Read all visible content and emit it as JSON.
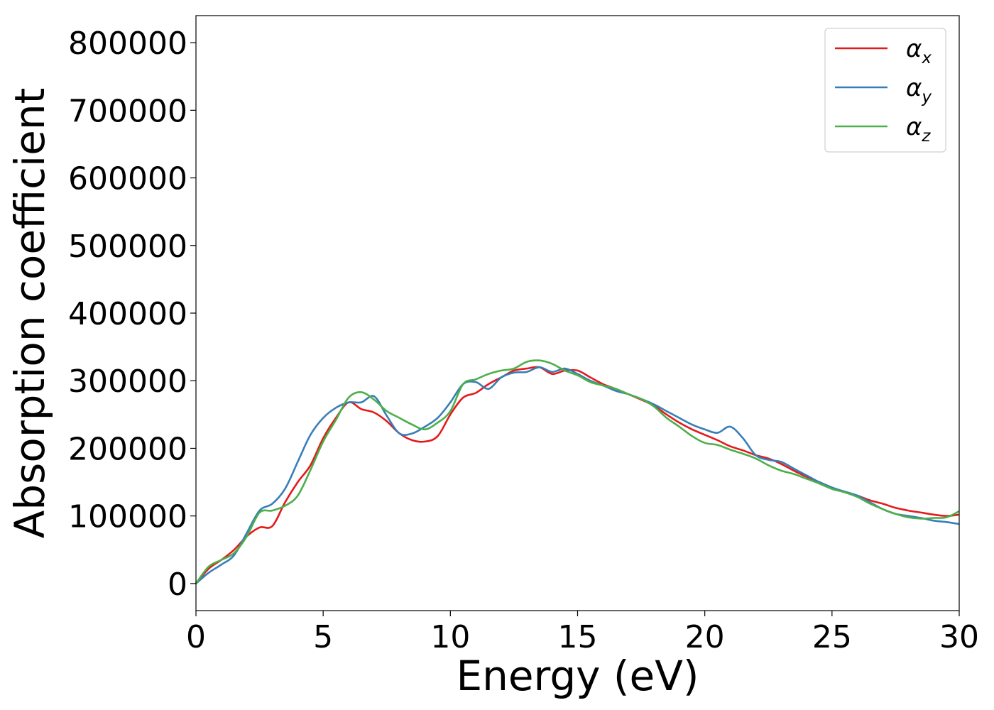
{
  "chart_data": {
    "type": "line",
    "title": "",
    "xlabel": "Energy (eV)",
    "ylabel": "Absorption coefficient",
    "xlim": [
      0,
      30
    ],
    "ylim": [
      -40000,
      840000
    ],
    "xticks": [
      0,
      5,
      10,
      15,
      20,
      25,
      30
    ],
    "xtick_labels": [
      "0",
      "5",
      "10",
      "15",
      "20",
      "25",
      "30"
    ],
    "yticks": [
      0,
      100000,
      200000,
      300000,
      400000,
      500000,
      600000,
      700000,
      800000
    ],
    "ytick_labels": [
      "0",
      "100000",
      "200000",
      "300000",
      "400000",
      "500000",
      "600000",
      "700000",
      "800000"
    ],
    "grid": false,
    "legend_position": "top-right",
    "series": [
      {
        "name": "α",
        "subscript": "x",
        "color": "#e41a1c",
        "x": [
          0,
          0.5,
          1,
          1.5,
          2,
          2.5,
          3,
          3.5,
          4,
          4.5,
          5,
          5.5,
          6,
          6.5,
          7,
          7.5,
          8,
          8.5,
          9,
          9.5,
          10,
          10.5,
          11,
          11.5,
          12,
          12.5,
          13,
          13.5,
          14,
          14.5,
          15,
          15.5,
          16,
          16.5,
          17,
          17.5,
          18,
          18.5,
          19,
          19.5,
          20,
          20.5,
          21,
          21.5,
          22,
          22.5,
          23,
          23.5,
          24,
          24.5,
          25,
          25.5,
          26,
          26.5,
          27,
          27.5,
          28,
          28.5,
          29,
          29.5,
          30
        ],
        "y": [
          0,
          22000,
          35000,
          50000,
          70000,
          83000,
          85000,
          120000,
          150000,
          175000,
          215000,
          245000,
          268000,
          258000,
          253000,
          240000,
          222000,
          212000,
          210000,
          218000,
          250000,
          275000,
          282000,
          295000,
          305000,
          315000,
          318000,
          320000,
          310000,
          315000,
          315000,
          305000,
          295000,
          288000,
          280000,
          272000,
          263000,
          250000,
          238000,
          228000,
          220000,
          212000,
          203000,
          197000,
          190000,
          185000,
          177000,
          167000,
          158000,
          150000,
          142000,
          135000,
          130000,
          123000,
          118000,
          112000,
          108000,
          105000,
          102000,
          100000,
          102000
        ]
      },
      {
        "name": "α",
        "subscript": "y",
        "color": "#377eb8",
        "x": [
          0,
          0.5,
          1,
          1.5,
          2,
          2.5,
          3,
          3.5,
          4,
          4.5,
          5,
          5.5,
          6,
          6.5,
          7,
          7.5,
          8,
          8.5,
          9,
          9.5,
          10,
          10.5,
          11,
          11.5,
          12,
          12.5,
          13,
          13.5,
          14,
          14.5,
          15,
          15.5,
          16,
          16.5,
          17,
          17.5,
          18,
          18.5,
          19,
          19.5,
          20,
          20.5,
          21,
          21.5,
          22,
          22.5,
          23,
          23.5,
          24,
          24.5,
          25,
          25.5,
          26,
          26.5,
          27,
          27.5,
          28,
          28.5,
          29,
          29.5,
          30
        ],
        "y": [
          0,
          16000,
          28000,
          42000,
          75000,
          108000,
          118000,
          140000,
          180000,
          220000,
          245000,
          260000,
          268000,
          268000,
          277000,
          248000,
          222000,
          222000,
          232000,
          245000,
          268000,
          295000,
          298000,
          288000,
          305000,
          312000,
          313000,
          320000,
          313000,
          318000,
          310000,
          300000,
          293000,
          285000,
          280000,
          273000,
          265000,
          255000,
          245000,
          235000,
          228000,
          223000,
          232000,
          215000,
          190000,
          183000,
          180000,
          170000,
          160000,
          150000,
          142000,
          136000,
          130000,
          120000,
          110000,
          103000,
          100000,
          97000,
          93000,
          91000,
          88000
        ]
      },
      {
        "name": "α",
        "subscript": "z",
        "color": "#4daf4a",
        "x": [
          0,
          0.5,
          1,
          1.5,
          2,
          2.5,
          3,
          3.5,
          4,
          4.5,
          5,
          5.5,
          6,
          6.5,
          7,
          7.5,
          8,
          8.5,
          9,
          9.5,
          10,
          10.5,
          11,
          11.5,
          12,
          12.5,
          13,
          13.5,
          14,
          14.5,
          15,
          15.5,
          16,
          16.5,
          17,
          17.5,
          18,
          18.5,
          19,
          19.5,
          20,
          20.5,
          21,
          21.5,
          22,
          22.5,
          23,
          23.5,
          24,
          24.5,
          25,
          25.5,
          26,
          26.5,
          27,
          27.5,
          28,
          28.5,
          29,
          29.5,
          30
        ],
        "y": [
          0,
          25000,
          35000,
          45000,
          70000,
          105000,
          108000,
          115000,
          130000,
          168000,
          210000,
          242000,
          275000,
          283000,
          272000,
          255000,
          245000,
          235000,
          228000,
          238000,
          255000,
          295000,
          302000,
          310000,
          315000,
          318000,
          328000,
          330000,
          325000,
          315000,
          308000,
          298000,
          293000,
          288000,
          280000,
          273000,
          262000,
          245000,
          232000,
          218000,
          208000,
          205000,
          198000,
          192000,
          185000,
          175000,
          167000,
          162000,
          155000,
          148000,
          140000,
          135000,
          128000,
          118000,
          110000,
          103000,
          98000,
          96000,
          97000,
          98000,
          107000
        ]
      }
    ]
  }
}
